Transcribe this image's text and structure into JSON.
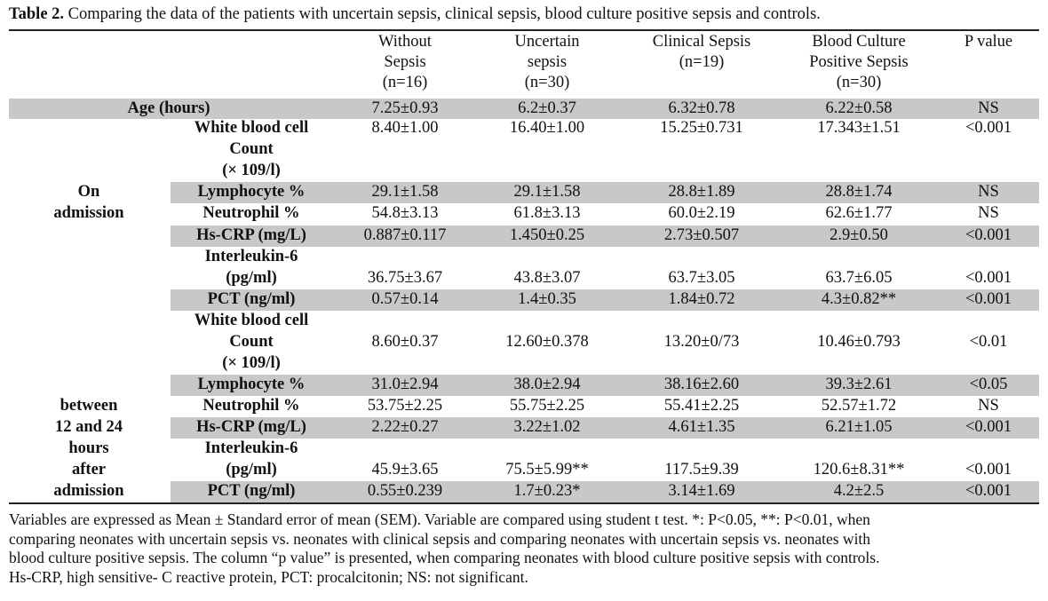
{
  "caption": {
    "label": "Table 2.",
    "text": " Comparing the data of the patients with uncertain sepsis, clinical sepsis, blood culture positive sepsis and controls."
  },
  "headers": [
    [
      "Without",
      "Sepsis",
      "(n=16)"
    ],
    [
      "Uncertain",
      "sepsis",
      "(n=30)"
    ],
    [
      "Clinical  Sepsis",
      "(n=19)"
    ],
    [
      "Blood Culture",
      "Positive Sepsis",
      "(n=30)"
    ],
    [
      "P value"
    ]
  ],
  "age_row": {
    "label": "Age (hours)",
    "values": [
      "7.25±0.93",
      "6.2±0.37",
      "6.32±0.78",
      "6.22±0.58",
      "NS"
    ]
  },
  "groups": [
    {
      "label": [
        "On",
        "admission"
      ]
    },
    {
      "label": [
        "between",
        "12 and 24",
        "hours",
        "after",
        "admission"
      ]
    }
  ],
  "rows": [
    {
      "label": [
        "White blood cell",
        "Count",
        "(× 109/l)"
      ],
      "values": [
        "8.40±1.00",
        "16.40±1.00",
        "15.25±0.731",
        "17.343±1.51",
        "<0.001"
      ]
    },
    {
      "label": [
        "Lymphocyte %"
      ],
      "values": [
        "29.1±1.58",
        "29.1±1.58",
        "28.8±1.89",
        "28.8±1.74",
        "NS"
      ]
    },
    {
      "label": [
        "Neutrophil %"
      ],
      "values": [
        "54.8±3.13",
        "61.8±3.13",
        "60.0±2.19",
        "62.6±1.77",
        "NS"
      ]
    },
    {
      "label": [
        "Hs-CRP (mg/L)"
      ],
      "values": [
        "0.887±0.117",
        "1.450±0.25",
        "2.73±0.507",
        "2.9±0.50",
        "<0.001"
      ]
    },
    {
      "label": [
        "Interleukin-6",
        "(pg/ml)"
      ],
      "values": [
        "36.75±3.67",
        "43.8±3.07",
        "63.7±3.05",
        "63.7±6.05",
        "<0.001"
      ]
    },
    {
      "label": [
        "PCT (ng/ml)"
      ],
      "values": [
        "0.57±0.14",
        "1.4±0.35",
        "1.84±0.72",
        "4.3±0.82**",
        "<0.001"
      ]
    },
    {
      "label": [
        "White blood cell",
        "Count",
        "(× 109/l)"
      ],
      "values": [
        "8.60±0.37",
        "12.60±0.378",
        "13.20±0/73",
        "10.46±0.793",
        "<0.01"
      ]
    },
    {
      "label": [
        "Lymphocyte %"
      ],
      "values": [
        "31.0±2.94",
        "38.0±2.94",
        "38.16±2.60",
        "39.3±2.61",
        "<0.05"
      ]
    },
    {
      "label": [
        "Neutrophil %"
      ],
      "values": [
        "53.75±2.25",
        "55.75±2.25",
        "55.41±2.25",
        "52.57±1.72",
        "NS"
      ]
    },
    {
      "label": [
        "Hs-CRP (mg/L)"
      ],
      "values": [
        "2.22±0.27",
        "3.22±1.02",
        "4.61±1.35",
        "6.21±1.05",
        "<0.001"
      ]
    },
    {
      "label": [
        "Interleukin-6",
        "(pg/ml)"
      ],
      "values": [
        "45.9±3.65",
        "75.5±5.99**",
        "117.5±9.39",
        "120.6±8.31**",
        "<0.001"
      ]
    },
    {
      "label": [
        "PCT (ng/ml)"
      ],
      "values": [
        "0.55±0.239",
        "1.7±0.23*",
        "3.14±1.69",
        "4.2±2.5",
        "<0.001"
      ]
    }
  ],
  "footnote": [
    "Variables are expressed as Mean ± Standard error of mean (SEM). Variable are compared using student t test. *: P<0.05, **: P<0.01, when",
    "comparing neonates with uncertain sepsis vs. neonates with clinical sepsis and comparing neonates with uncertain sepsis vs. neonates with",
    "blood culture positive sepsis. The column “p value” is presented, when comparing neonates with blood culture positive sepsis with controls.",
    "Hs-CRP, high sensitive- C reactive protein, PCT: procalcitonin; NS: not significant."
  ]
}
